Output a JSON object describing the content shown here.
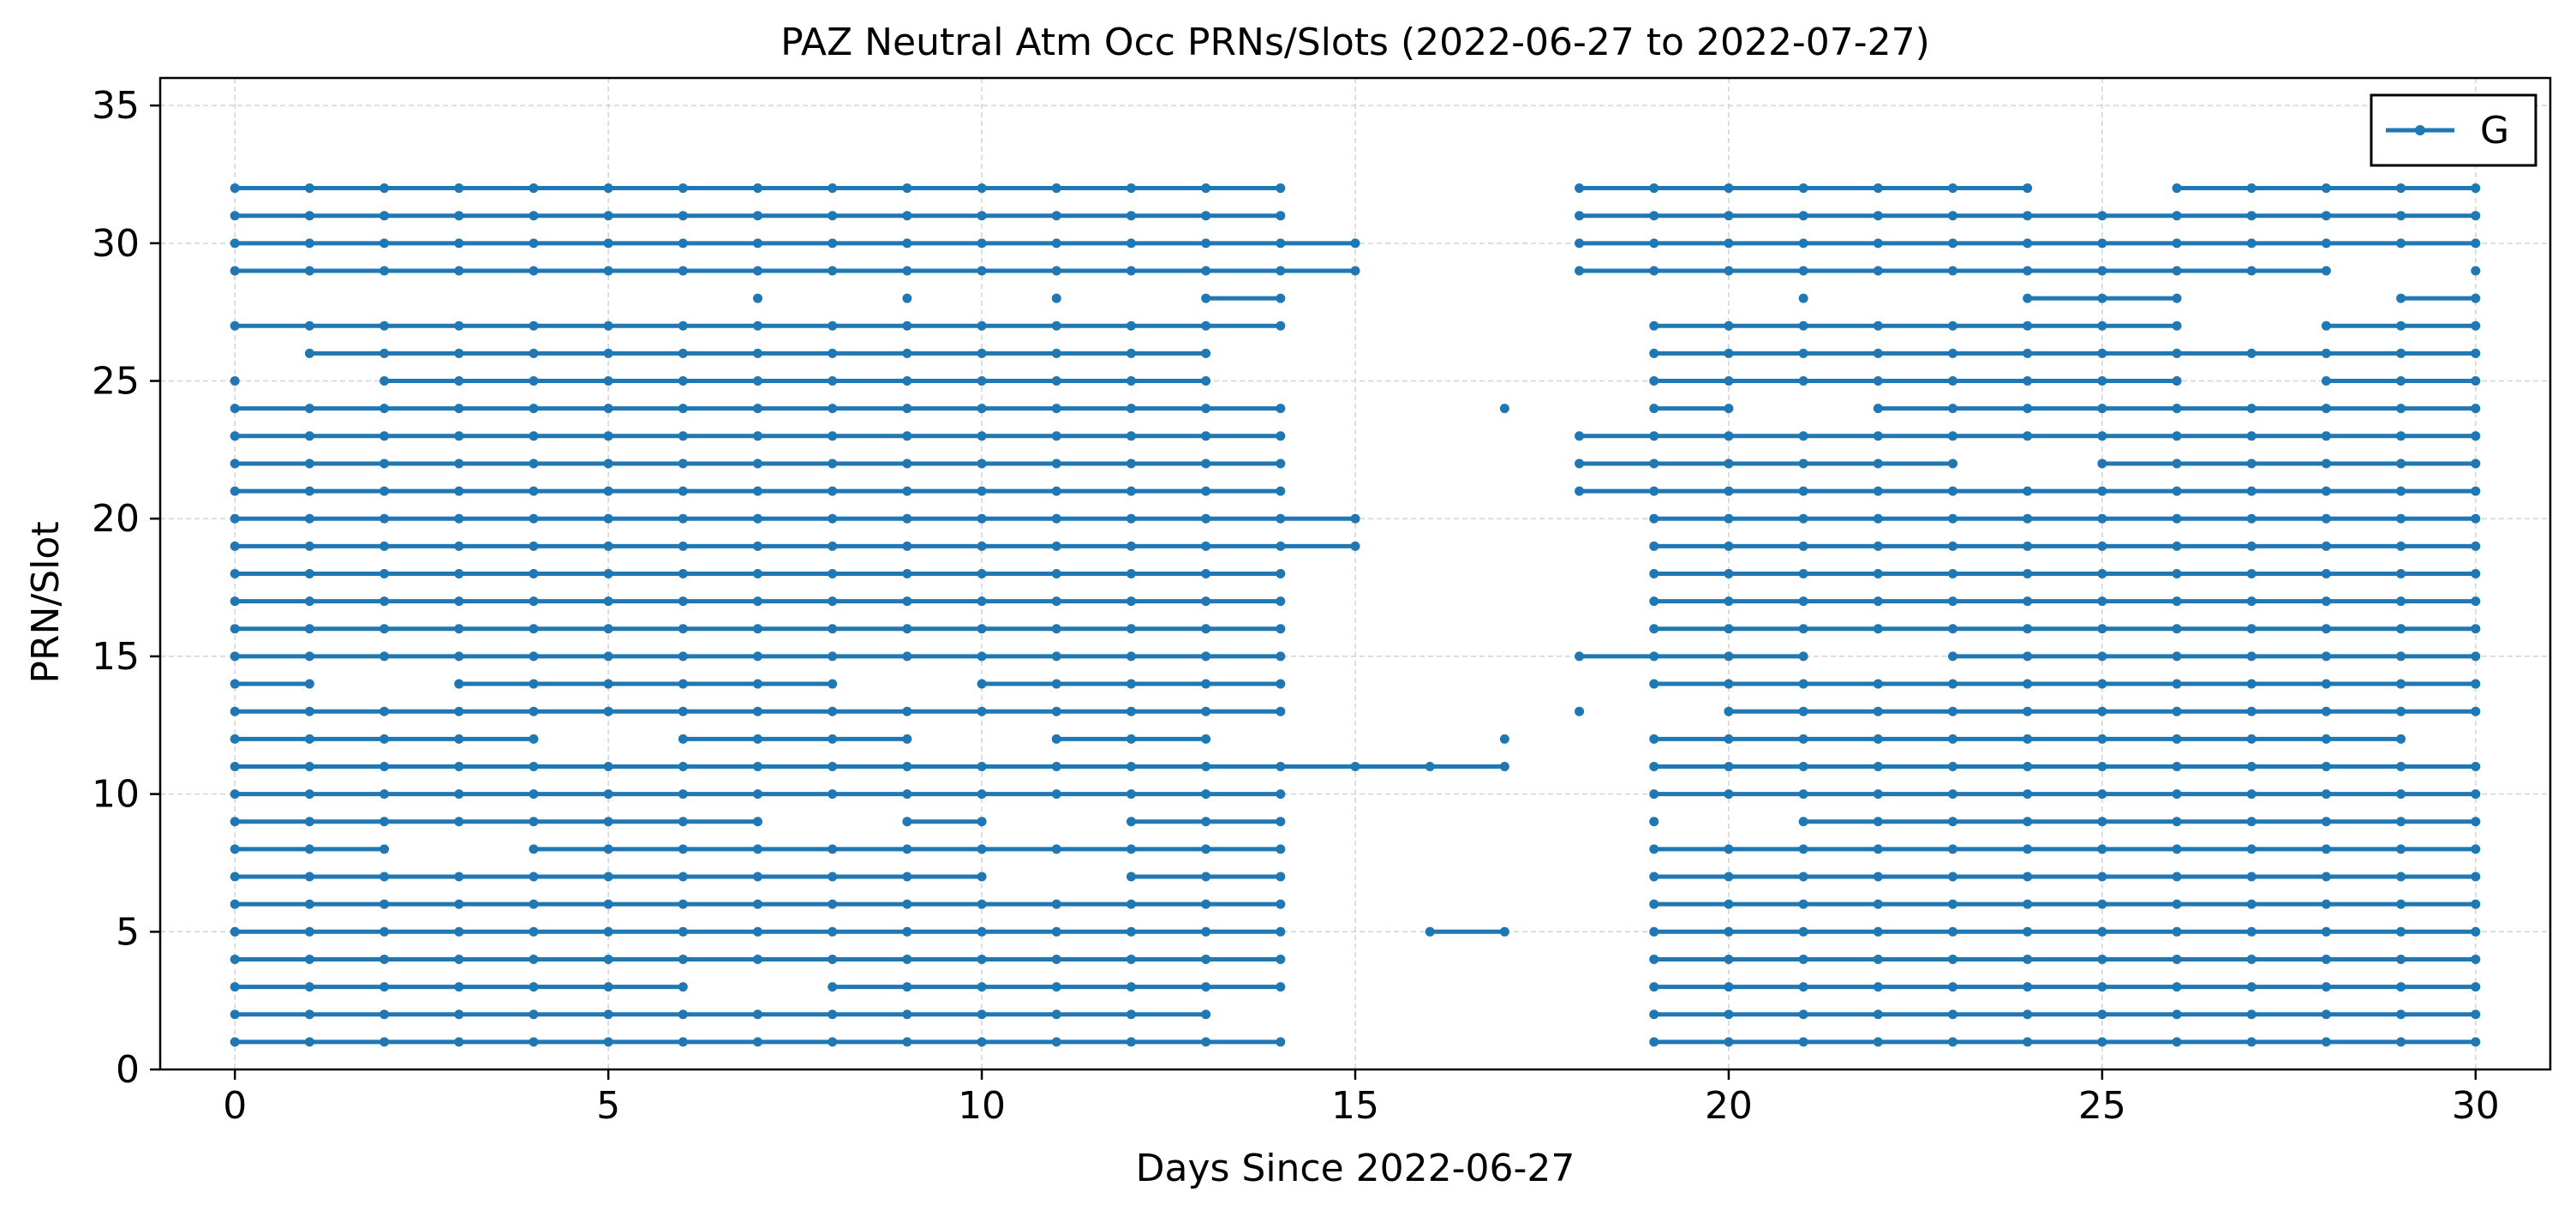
{
  "chart_data": {
    "type": "line",
    "title": "PAZ Neutral Atm Occ PRNs/Slots (2022-06-27 to 2022-07-27)",
    "xlabel": "Days Since 2022-06-27",
    "ylabel": "PRN/Slot",
    "xlim": [
      -1,
      31
    ],
    "ylim": [
      0,
      36
    ],
    "xticks": [
      0,
      5,
      10,
      15,
      20,
      25,
      30
    ],
    "yticks": [
      0,
      5,
      10,
      15,
      20,
      25,
      30,
      35
    ],
    "grid": true,
    "legend_position": "top-right",
    "series": [
      {
        "name": "G",
        "color": "#1f77b4",
        "prns": [
          {
            "prn": 32,
            "days": [
              0,
              1,
              2,
              3,
              4,
              5,
              6,
              7,
              8,
              9,
              10,
              11,
              12,
              13,
              14,
              18,
              19,
              20,
              21,
              22,
              23,
              24,
              26,
              27,
              28,
              29,
              30
            ]
          },
          {
            "prn": 31,
            "days": [
              0,
              1,
              2,
              3,
              4,
              5,
              6,
              7,
              8,
              9,
              10,
              11,
              12,
              13,
              14,
              18,
              19,
              20,
              21,
              22,
              23,
              24,
              25,
              26,
              27,
              28,
              29,
              30
            ]
          },
          {
            "prn": 30,
            "days": [
              0,
              1,
              2,
              3,
              4,
              5,
              6,
              7,
              8,
              9,
              10,
              11,
              12,
              13,
              14,
              15,
              18,
              19,
              20,
              21,
              22,
              23,
              24,
              25,
              26,
              27,
              28,
              29,
              30
            ]
          },
          {
            "prn": 29,
            "days": [
              0,
              1,
              2,
              3,
              4,
              5,
              6,
              7,
              8,
              9,
              10,
              11,
              12,
              13,
              14,
              15,
              18,
              19,
              20,
              21,
              22,
              23,
              24,
              25,
              26,
              27,
              28,
              30
            ]
          },
          {
            "prn": 28,
            "days": [
              7,
              9,
              11,
              13,
              14,
              21,
              24,
              25,
              26,
              29,
              30
            ]
          },
          {
            "prn": 27,
            "days": [
              0,
              1,
              2,
              3,
              4,
              5,
              6,
              7,
              8,
              9,
              10,
              11,
              12,
              13,
              14,
              19,
              20,
              21,
              22,
              23,
              24,
              25,
              26,
              28,
              29,
              30
            ]
          },
          {
            "prn": 26,
            "days": [
              1,
              2,
              3,
              4,
              5,
              6,
              7,
              8,
              9,
              10,
              11,
              12,
              13,
              19,
              20,
              21,
              22,
              23,
              24,
              25,
              26,
              27,
              28,
              29,
              30
            ]
          },
          {
            "prn": 25,
            "days": [
              0,
              2,
              3,
              4,
              5,
              6,
              7,
              8,
              9,
              10,
              11,
              12,
              13,
              19,
              20,
              21,
              22,
              23,
              24,
              25,
              26,
              28,
              29,
              30
            ]
          },
          {
            "prn": 24,
            "days": [
              0,
              1,
              2,
              3,
              4,
              5,
              6,
              7,
              8,
              9,
              10,
              11,
              12,
              13,
              14,
              17,
              19,
              20,
              22,
              23,
              24,
              25,
              26,
              27,
              28,
              29,
              30
            ]
          },
          {
            "prn": 23,
            "days": [
              0,
              1,
              2,
              3,
              4,
              5,
              6,
              7,
              8,
              9,
              10,
              11,
              12,
              13,
              14,
              18,
              19,
              20,
              21,
              22,
              23,
              24,
              25,
              26,
              27,
              28,
              29,
              30
            ]
          },
          {
            "prn": 22,
            "days": [
              0,
              1,
              2,
              3,
              4,
              5,
              6,
              7,
              8,
              9,
              10,
              11,
              12,
              13,
              14,
              18,
              19,
              20,
              21,
              22,
              23,
              25,
              26,
              27,
              28,
              29,
              30
            ]
          },
          {
            "prn": 21,
            "days": [
              0,
              1,
              2,
              3,
              4,
              5,
              6,
              7,
              8,
              9,
              10,
              11,
              12,
              13,
              14,
              18,
              19,
              20,
              21,
              22,
              23,
              24,
              25,
              26,
              27,
              28,
              29,
              30
            ]
          },
          {
            "prn": 20,
            "days": [
              0,
              1,
              2,
              3,
              4,
              5,
              6,
              7,
              8,
              9,
              10,
              11,
              12,
              13,
              14,
              15,
              19,
              20,
              21,
              22,
              23,
              24,
              25,
              26,
              27,
              28,
              29,
              30
            ]
          },
          {
            "prn": 19,
            "days": [
              0,
              1,
              2,
              3,
              4,
              5,
              6,
              7,
              8,
              9,
              10,
              11,
              12,
              13,
              14,
              15,
              19,
              20,
              21,
              22,
              23,
              24,
              25,
              26,
              27,
              28,
              29,
              30
            ]
          },
          {
            "prn": 18,
            "days": [
              0,
              1,
              2,
              3,
              4,
              5,
              6,
              7,
              8,
              9,
              10,
              11,
              12,
              13,
              14,
              19,
              20,
              21,
              22,
              23,
              24,
              25,
              26,
              27,
              28,
              29,
              30
            ]
          },
          {
            "prn": 17,
            "days": [
              0,
              1,
              2,
              3,
              4,
              5,
              6,
              7,
              8,
              9,
              10,
              11,
              12,
              13,
              14,
              19,
              20,
              21,
              22,
              23,
              24,
              25,
              26,
              27,
              28,
              29,
              30
            ]
          },
          {
            "prn": 16,
            "days": [
              0,
              1,
              2,
              3,
              4,
              5,
              6,
              7,
              8,
              9,
              10,
              11,
              12,
              13,
              14,
              19,
              20,
              21,
              22,
              23,
              24,
              25,
              26,
              27,
              28,
              29,
              30
            ]
          },
          {
            "prn": 15,
            "days": [
              0,
              1,
              2,
              3,
              4,
              5,
              6,
              7,
              8,
              9,
              10,
              11,
              12,
              13,
              14,
              18,
              19,
              20,
              21,
              23,
              24,
              25,
              26,
              27,
              28,
              29,
              30
            ]
          },
          {
            "prn": 14,
            "days": [
              0,
              1,
              3,
              4,
              5,
              6,
              7,
              8,
              10,
              11,
              12,
              13,
              14,
              19,
              20,
              21,
              22,
              23,
              24,
              25,
              26,
              27,
              28,
              29,
              30
            ]
          },
          {
            "prn": 13,
            "days": [
              0,
              1,
              2,
              3,
              4,
              5,
              6,
              7,
              8,
              9,
              10,
              11,
              12,
              13,
              14,
              18,
              20,
              21,
              22,
              23,
              24,
              25,
              26,
              27,
              28,
              29,
              30
            ]
          },
          {
            "prn": 12,
            "days": [
              0,
              1,
              2,
              3,
              4,
              6,
              7,
              8,
              9,
              11,
              12,
              13,
              17,
              19,
              20,
              21,
              22,
              23,
              24,
              25,
              26,
              27,
              28,
              29
            ]
          },
          {
            "prn": 11,
            "days": [
              0,
              1,
              2,
              3,
              4,
              5,
              6,
              7,
              8,
              9,
              10,
              11,
              12,
              13,
              14,
              15,
              16,
              17,
              19,
              20,
              21,
              22,
              23,
              24,
              25,
              26,
              27,
              28,
              29,
              30
            ]
          },
          {
            "prn": 10,
            "days": [
              0,
              1,
              2,
              3,
              4,
              5,
              6,
              7,
              8,
              9,
              10,
              11,
              12,
              13,
              14,
              19,
              20,
              21,
              22,
              23,
              24,
              25,
              26,
              27,
              28,
              29,
              30
            ]
          },
          {
            "prn": 9,
            "days": [
              0,
              1,
              2,
              3,
              4,
              5,
              6,
              7,
              9,
              10,
              12,
              13,
              14,
              19,
              21,
              22,
              23,
              24,
              25,
              26,
              27,
              28,
              29,
              30
            ]
          },
          {
            "prn": 8,
            "days": [
              0,
              1,
              2,
              4,
              5,
              6,
              7,
              8,
              9,
              10,
              11,
              12,
              13,
              14,
              19,
              20,
              21,
              22,
              23,
              24,
              25,
              26,
              27,
              28,
              29,
              30
            ]
          },
          {
            "prn": 7,
            "days": [
              0,
              1,
              2,
              3,
              4,
              5,
              6,
              7,
              8,
              9,
              10,
              12,
              13,
              14,
              19,
              20,
              21,
              22,
              23,
              24,
              25,
              26,
              27,
              28,
              29,
              30
            ]
          },
          {
            "prn": 6,
            "days": [
              0,
              1,
              2,
              3,
              4,
              5,
              6,
              7,
              8,
              9,
              10,
              11,
              12,
              13,
              14,
              19,
              20,
              21,
              22,
              23,
              24,
              25,
              26,
              27,
              28,
              29,
              30
            ]
          },
          {
            "prn": 5,
            "days": [
              0,
              1,
              2,
              3,
              4,
              5,
              6,
              7,
              8,
              9,
              10,
              11,
              12,
              13,
              14,
              16,
              17,
              19,
              20,
              21,
              22,
              23,
              24,
              25,
              26,
              27,
              28,
              29,
              30
            ]
          },
          {
            "prn": 4,
            "days": [
              0,
              1,
              2,
              3,
              4,
              5,
              6,
              7,
              8,
              9,
              10,
              11,
              12,
              13,
              14,
              19,
              20,
              21,
              22,
              23,
              24,
              25,
              26,
              27,
              28,
              29,
              30
            ]
          },
          {
            "prn": 3,
            "days": [
              0,
              1,
              2,
              3,
              4,
              5,
              6,
              8,
              9,
              10,
              11,
              12,
              13,
              14,
              19,
              20,
              21,
              22,
              23,
              24,
              25,
              26,
              27,
              28,
              29,
              30
            ]
          },
          {
            "prn": 2,
            "days": [
              0,
              1,
              2,
              3,
              4,
              5,
              6,
              7,
              8,
              9,
              10,
              11,
              12,
              13,
              19,
              20,
              21,
              22,
              23,
              24,
              25,
              26,
              27,
              28,
              29,
              30
            ]
          },
          {
            "prn": 1,
            "days": [
              0,
              1,
              2,
              3,
              4,
              5,
              6,
              7,
              8,
              9,
              10,
              11,
              12,
              13,
              14,
              19,
              20,
              21,
              22,
              23,
              24,
              25,
              26,
              27,
              28,
              29,
              30
            ]
          }
        ]
      }
    ]
  }
}
